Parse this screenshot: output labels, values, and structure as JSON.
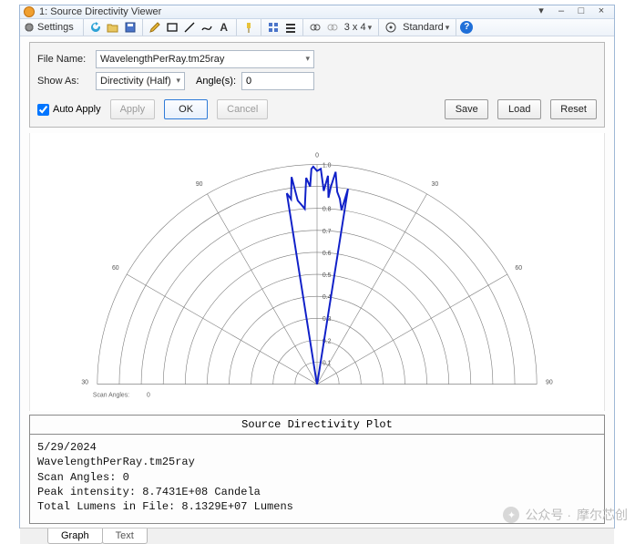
{
  "window": {
    "title": "1: Source Directivity Viewer"
  },
  "toolbar": {
    "settings_label": "Settings",
    "grid_label": "3 x 4",
    "view_label": "Standard"
  },
  "controls": {
    "filename_label": "File Name:",
    "filename_value": "WavelengthPerRay.tm25ray",
    "showas_label": "Show As:",
    "showas_value": "Directivity (Half)",
    "angles_label": "Angle(s):",
    "angles_value": "0",
    "autoapply_label": "Auto Apply",
    "autoapply_checked": true,
    "btn_apply": "Apply",
    "btn_ok": "OK",
    "btn_cancel": "Cancel",
    "btn_save": "Save",
    "btn_load": "Load",
    "btn_reset": "Reset"
  },
  "chart": {
    "type": "polar-half",
    "center_top_label": "0",
    "radial_ticks": [
      "0.1",
      "0.2",
      "0.3",
      "0.4",
      "0.5",
      "0.6",
      "0.7",
      "0.8",
      "0.9",
      "1.0"
    ],
    "angle_ticks_deg": [
      -90,
      -60,
      -30,
      0,
      30,
      60,
      90
    ],
    "angle_tick_labels_left": [
      "90",
      "60",
      "30"
    ],
    "angle_tick_labels_right": [
      "30",
      "60",
      "90"
    ],
    "grid_color": "#7a7a7a",
    "background_color": "#ffffff",
    "axis_font_size": 7,
    "series_color": "#1020c8",
    "series_width": 2,
    "series_angles_deg": [
      -10,
      -9,
      -8,
      -7,
      -6,
      -5,
      -4,
      -3,
      -2,
      -1.5,
      -1,
      0,
      1,
      2,
      3,
      3.5,
      4,
      5,
      6,
      7,
      8,
      9,
      10
    ],
    "series_radii": [
      0.02,
      0.88,
      0.85,
      0.95,
      0.84,
      0.82,
      0.8,
      0.94,
      0.9,
      0.98,
      0.99,
      0.97,
      0.98,
      0.88,
      0.95,
      0.85,
      0.9,
      0.97,
      0.88,
      0.85,
      0.8,
      0.9,
      0.02
    ],
    "scan_angles_label": "Scan Angles:",
    "scan_angles_value": "0"
  },
  "info": {
    "title": "Source Directivity Plot",
    "date": "5/29/2024",
    "file": "WavelengthPerRay.tm25ray",
    "scan_angles_line": "Scan Angles: 0",
    "peak_line": "Peak intensity: 8.7431E+08 Candela",
    "total_line": "Total Lumens in File: 8.1329E+07 Lumens"
  },
  "tabs": {
    "graph": "Graph",
    "text": "Text"
  },
  "watermark": {
    "prefix": "公众号 ·",
    "name": "摩尔芯创"
  }
}
